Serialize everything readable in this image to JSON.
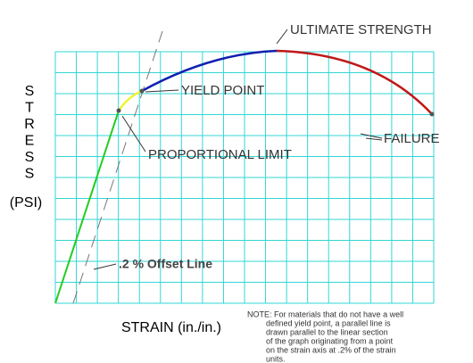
{
  "labels": {
    "ultimate_strength": "ULTIMATE STRENGTH",
    "yield_point": "YIELD POINT",
    "proportional_limit": "PROPORTIONAL LIMIT",
    "failure": "FAILURE",
    "y_axis_letters": [
      "S",
      "T",
      "R",
      "E",
      "S",
      "S"
    ],
    "y_axis_unit": "(PSI)",
    "offset_line": ".2 % Offset Line",
    "x_axis": "STRAIN (in./in.)"
  },
  "note": [
    "NOTE:  For materials that do not have a well",
    "defined yield point, a parallel line is",
    "drawn parallel to the linear section",
    "of the graph originating from a point",
    "on the strain axis at .2% of the strain",
    "units."
  ]
}
